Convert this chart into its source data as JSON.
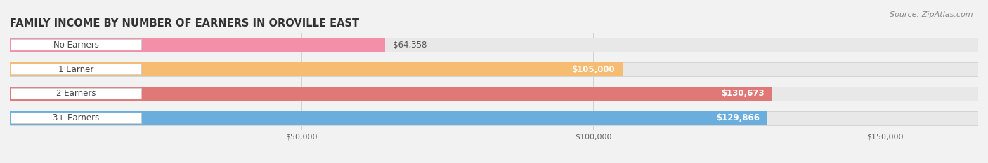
{
  "title": "FAMILY INCOME BY NUMBER OF EARNERS IN OROVILLE EAST",
  "source": "Source: ZipAtlas.com",
  "categories": [
    "No Earners",
    "1 Earner",
    "2 Earners",
    "3+ Earners"
  ],
  "values": [
    64358,
    105000,
    130673,
    129866
  ],
  "labels": [
    "$64,358",
    "$105,000",
    "$130,673",
    "$129,866"
  ],
  "bar_colors": [
    "#f48faa",
    "#f5bc72",
    "#e07878",
    "#6aaede"
  ],
  "background_color": "#f2f2f2",
  "track_color": "#e8e8e8",
  "track_edge_color": "#d0d0d0",
  "xlim": [
    0,
    166000
  ],
  "xmin": 0,
  "xticks": [
    50000,
    100000,
    150000
  ],
  "xtick_labels": [
    "$50,000",
    "$100,000",
    "$150,000"
  ],
  "title_fontsize": 10.5,
  "label_fontsize": 8.5,
  "cat_fontsize": 8.5,
  "source_fontsize": 8,
  "bar_height": 0.55
}
